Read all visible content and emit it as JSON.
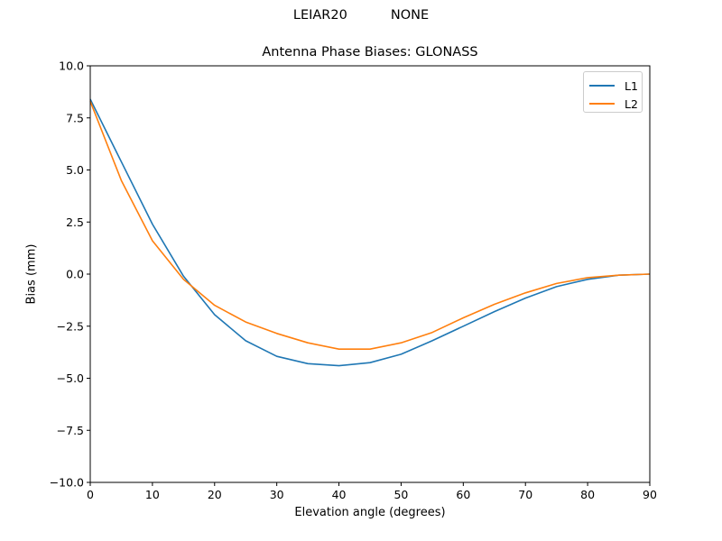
{
  "suptitle": {
    "antenna": "LEIAR20",
    "radome": "NONE"
  },
  "title": "Antenna Phase Biases: GLONASS",
  "xlabel": "Elevation angle (degrees)",
  "ylabel": "Bias (mm)",
  "legend": {
    "items": [
      {
        "label": "L1",
        "color": "#1f77b4"
      },
      {
        "label": "L2",
        "color": "#ff7f0e"
      }
    ]
  },
  "chart_data": {
    "type": "line",
    "title": "Antenna Phase Biases: GLONASS",
    "suptitle": "LEIAR20          NONE",
    "xlabel": "Elevation angle (degrees)",
    "ylabel": "Bias (mm)",
    "xlim": [
      0,
      90
    ],
    "ylim": [
      -10,
      10
    ],
    "xticks": [
      0,
      10,
      20,
      30,
      40,
      50,
      60,
      70,
      80,
      90
    ],
    "yticks": [
      -10.0,
      -7.5,
      -5.0,
      -2.5,
      0.0,
      2.5,
      5.0,
      7.5,
      10.0
    ],
    "ytick_labels": [
      "−10.0",
      "−7.5",
      "−5.0",
      "−2.5",
      "0.0",
      "2.5",
      "5.0",
      "7.5",
      "10.0"
    ],
    "grid": false,
    "legend_position": "upper right",
    "x": [
      0,
      5,
      10,
      15,
      20,
      25,
      30,
      35,
      40,
      45,
      50,
      55,
      60,
      65,
      70,
      75,
      80,
      85,
      90
    ],
    "series": [
      {
        "name": "L1",
        "color": "#1f77b4",
        "values": [
          8.4,
          5.4,
          2.4,
          -0.1,
          -1.95,
          -3.2,
          -3.95,
          -4.3,
          -4.4,
          -4.25,
          -3.85,
          -3.2,
          -2.5,
          -1.8,
          -1.15,
          -0.6,
          -0.25,
          -0.05,
          0.0
        ]
      },
      {
        "name": "L2",
        "color": "#ff7f0e",
        "values": [
          8.3,
          4.5,
          1.6,
          -0.25,
          -1.5,
          -2.3,
          -2.85,
          -3.3,
          -3.6,
          -3.6,
          -3.3,
          -2.8,
          -2.1,
          -1.45,
          -0.9,
          -0.45,
          -0.17,
          -0.05,
          0.0
        ]
      }
    ]
  }
}
